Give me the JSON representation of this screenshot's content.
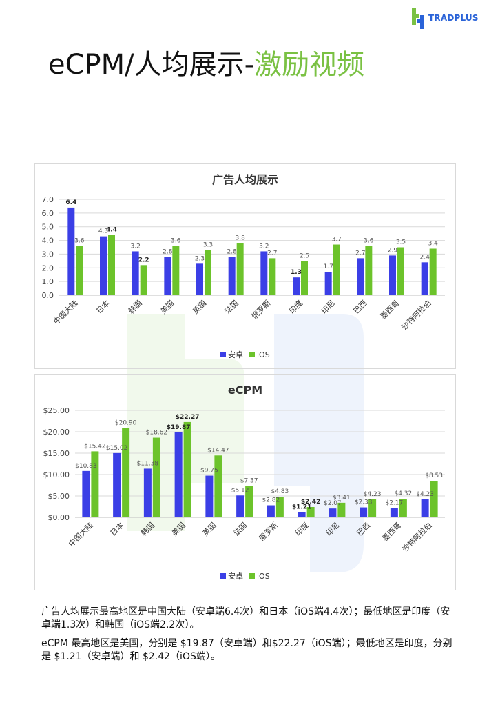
{
  "brand": {
    "name": "TRADPLUS",
    "icon": "tradplus-logo-icon",
    "colors": {
      "blue": "#2a63d8",
      "green": "#7ac143"
    }
  },
  "title": {
    "main": "eCPM/人均展示-",
    "accent": "激励视频"
  },
  "colors": {
    "android": "#3b3fe6",
    "ios": "#6cc32b"
  },
  "chart_data": [
    {
      "type": "bar",
      "title": "广告人均展示",
      "categories": [
        "中国大陆",
        "日本",
        "韩国",
        "美国",
        "英国",
        "法国",
        "俄罗斯",
        "印度",
        "印尼",
        "巴西",
        "墨西哥",
        "沙特阿拉伯"
      ],
      "series": [
        {
          "name": "安卓",
          "values": [
            6.4,
            4.3,
            3.2,
            2.8,
            2.3,
            2.8,
            3.2,
            1.3,
            1.7,
            2.7,
            2.9,
            2.4
          ]
        },
        {
          "name": "iOS",
          "values": [
            3.6,
            4.4,
            2.2,
            3.6,
            3.3,
            3.8,
            2.7,
            2.5,
            3.7,
            3.6,
            3.5,
            3.4
          ]
        }
      ],
      "value_labels": {
        "android": [
          "6.4",
          "4.3",
          "3.2",
          "2.8",
          "2.3",
          "2.8",
          "3.2",
          "1.3",
          "1.7",
          "2.7",
          "2.9",
          "2.4"
        ],
        "ios": [
          "3.6",
          "4.4",
          "2.2",
          "3.6",
          "3.3",
          "3.8",
          "2.7",
          "2.5",
          "3.7",
          "3.6",
          "3.5",
          "3.4"
        ]
      },
      "bold_labels": {
        "android": [
          0,
          7
        ],
        "ios": [
          1,
          2
        ]
      },
      "yticks": [
        "0.0",
        "1.0",
        "2.0",
        "3.0",
        "4.0",
        "5.0",
        "6.0",
        "7.0"
      ],
      "ylim": [
        0,
        7
      ],
      "grid": true,
      "legend": "bottom"
    },
    {
      "type": "bar",
      "title": "eCPM",
      "categories": [
        "中国大陆",
        "日本",
        "韩国",
        "美国",
        "英国",
        "法国",
        "俄罗斯",
        "印度",
        "印尼",
        "巴西",
        "墨西哥",
        "沙特阿拉伯"
      ],
      "series": [
        {
          "name": "安卓",
          "values": [
            10.83,
            15.02,
            11.38,
            19.87,
            9.75,
            5.12,
            2.82,
            1.21,
            2.07,
            2.33,
            2.17,
            4.23
          ]
        },
        {
          "name": "iOS",
          "values": [
            15.42,
            20.9,
            18.62,
            22.27,
            14.47,
            7.37,
            4.83,
            2.42,
            3.41,
            4.23,
            4.32,
            8.53
          ]
        }
      ],
      "value_labels": {
        "android": [
          "$10.83",
          "$15.02",
          "$11.38",
          "$19.87",
          "$9.75",
          "$5.12",
          "$2.82",
          "$1.21",
          "$2.07",
          "$2.33",
          "$2.17",
          "$4.23"
        ],
        "ios": [
          "$15.42",
          "$20.90",
          "$18.62",
          "$22.27",
          "$14.47",
          "$7.37",
          "$4.83",
          "$2.42",
          "$3.41",
          "$4.23",
          "$4.32",
          "$8.53"
        ]
      },
      "bold_labels": {
        "android": [
          3,
          7
        ],
        "ios": [
          3,
          7
        ]
      },
      "yticks": [
        "$0.00",
        "$5.00",
        "$10.00",
        "$15.00",
        "$20.00",
        "$25.00"
      ],
      "ylim": [
        0,
        25
      ],
      "grid": true,
      "legend": "bottom"
    }
  ],
  "summary": [
    "广告人均展示最高地区是中国大陆（安卓端6.4次）和日本（iOS端4.4次）；最低地区是印度（安卓端1.3次）和韩国（iOS端2.2次）。",
    "eCPM 最高地区是美国，分别是 $19.87（安卓端）和$22.27（iOS端）；最低地区是印度，分别是 $1.21（安卓端）和 $2.42（iOS端）。"
  ]
}
